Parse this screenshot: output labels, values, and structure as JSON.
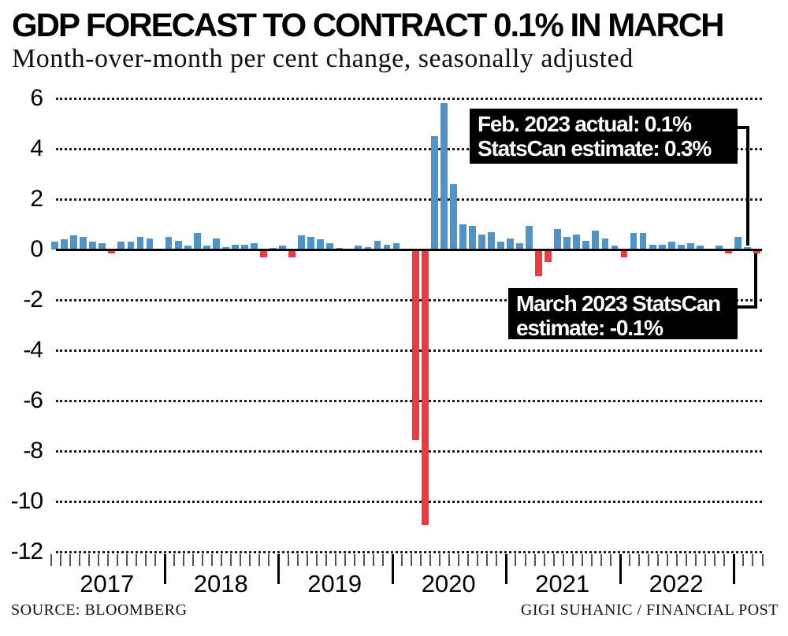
{
  "header": {
    "title": "GDP FORECAST TO CONTRACT 0.1% IN MARCH",
    "subtitle": "Month-over-month per cent change, seasonally adjusted"
  },
  "annotations": {
    "feb_box": {
      "line1": "Feb. 2023 actual: 0.1%",
      "line2": "StatsCan estimate: 0.3%"
    },
    "march_box": {
      "line1": "March 2023 StatsCan",
      "line2": "estimate: -0.1%"
    }
  },
  "footer": {
    "source": "SOURCE: BLOOMBERG",
    "credit": "GIGI SUHANIC / FINANCIAL POST"
  },
  "colors": {
    "positive_bar": "#4e94cb",
    "negative_bar": "#ee3b41",
    "axis": "#000000",
    "grid_dot": "#1a1a1a",
    "annotation_bg": "#000000",
    "annotation_text": "#ffffff",
    "minor_tick": "#555555",
    "major_tick": "#000000"
  },
  "chart_data": {
    "type": "bar",
    "title": "GDP FORECAST TO CONTRACT 0.1% IN MARCH",
    "subtitle": "Month-over-month per cent change, seasonally adjusted",
    "unit": "per cent change, month-over-month, seasonally adjusted",
    "ylim": [
      -12,
      6
    ],
    "yticks": [
      6,
      4,
      2,
      0,
      -2,
      -4,
      -6,
      -8,
      -10,
      -12
    ],
    "grid": "dotted horizontal lines, solid zero axis",
    "legend": "none",
    "x_start": "2017-01",
    "x_end": "2023-03",
    "year_labels": [
      "2017",
      "2018",
      "2019",
      "2020",
      "2021",
      "2022"
    ],
    "values_by_year": {
      "2017": [
        0.3,
        0.4,
        0.55,
        0.5,
        0.3,
        0.25,
        -0.1,
        0.3,
        0.3,
        0.5,
        0.45,
        0.0
      ],
      "2018": [
        0.5,
        0.35,
        0.15,
        0.65,
        0.15,
        0.45,
        0.1,
        0.2,
        0.2,
        0.25,
        -0.25,
        0.05
      ],
      "2019": [
        0.15,
        -0.25,
        0.55,
        0.5,
        0.4,
        0.25,
        0.05,
        0.0,
        0.15,
        0.1,
        0.35,
        0.2
      ],
      "2020": [
        0.25,
        0.0,
        -7.5,
        -10.9,
        4.5,
        5.8,
        2.6,
        1.0,
        0.95,
        0.6,
        0.7,
        0.3
      ],
      "2021": [
        0.45,
        0.25,
        0.95,
        -1.0,
        -0.45,
        0.8,
        0.5,
        0.6,
        0.35,
        0.75,
        0.45,
        0.15
      ],
      "2022": [
        -0.25,
        0.65,
        0.65,
        0.2,
        0.2,
        0.3,
        0.2,
        0.25,
        0.15,
        0.0,
        0.15,
        -0.1
      ],
      "2023": [
        0.5,
        0.1,
        -0.1
      ]
    },
    "key_points": {
      "feb_2023_actual": 0.1,
      "feb_2023_statscan_estimate": 0.3,
      "march_2023_statscan_estimate": -0.1,
      "march_2020": -7.5,
      "april_2020": -10.9
    }
  }
}
